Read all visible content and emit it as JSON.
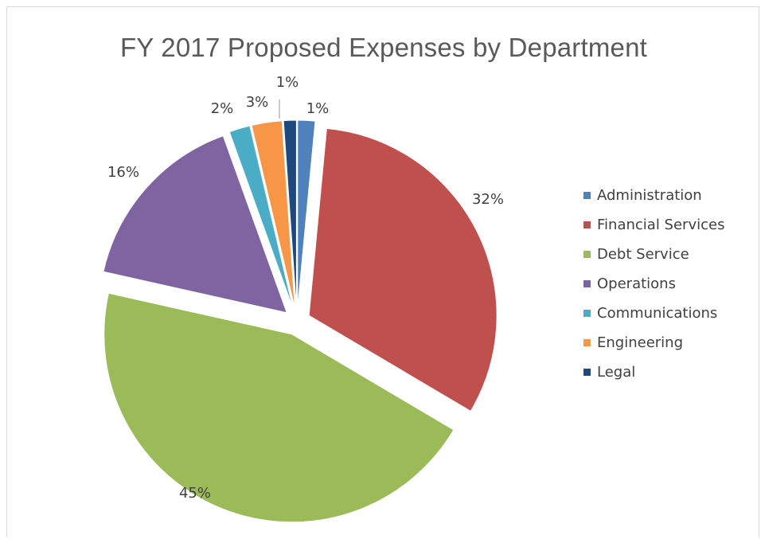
{
  "chart_data": {
    "type": "pie",
    "title": "FY 2017 Proposed Expenses by Department",
    "categories": [
      "Administration",
      "Financial Services",
      "Debt Service",
      "Operations",
      "Communications",
      "Engineering",
      "Legal"
    ],
    "values": [
      1.5,
      32,
      45,
      16,
      1.8,
      2.6,
      1.1
    ],
    "data_labels": [
      "1%",
      "32%",
      "45%",
      "16%",
      "2%",
      "3%",
      "1%"
    ],
    "colors": [
      "#4f81bd",
      "#c0504d",
      "#9bbb59",
      "#8064a2",
      "#4bacc6",
      "#f79646",
      "#1f497d"
    ],
    "exploded": true,
    "legend_position": "right",
    "start_angle_deg": 0,
    "direction": "clockwise"
  }
}
